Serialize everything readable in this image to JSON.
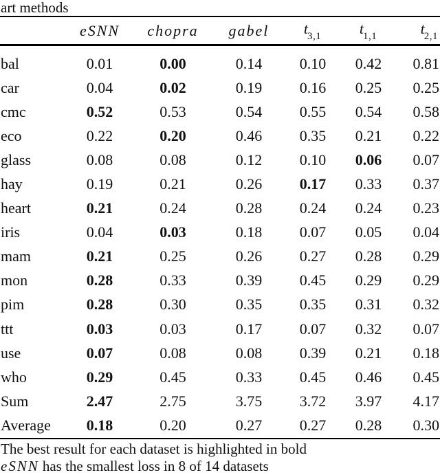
{
  "caption_top": "art methods",
  "table": {
    "headers": [
      {
        "text": "eSNN"
      },
      {
        "text": "chopra"
      },
      {
        "text": "gabel"
      },
      {
        "text": "t",
        "sub": "3,1"
      },
      {
        "text": "t",
        "sub": "1,1"
      },
      {
        "text": "t",
        "sub": "2,1"
      }
    ],
    "rows": [
      {
        "label": "bal",
        "values": [
          "0.01",
          "0.00",
          "0.14",
          "0.10",
          "0.42",
          "0.81"
        ],
        "bold": 1
      },
      {
        "label": "car",
        "values": [
          "0.04",
          "0.02",
          "0.19",
          "0.16",
          "0.25",
          "0.25"
        ],
        "bold": 1
      },
      {
        "label": "cmc",
        "values": [
          "0.52",
          "0.53",
          "0.54",
          "0.55",
          "0.54",
          "0.58"
        ],
        "bold": 0
      },
      {
        "label": "eco",
        "values": [
          "0.22",
          "0.20",
          "0.46",
          "0.35",
          "0.21",
          "0.22"
        ],
        "bold": 1
      },
      {
        "label": "glass",
        "values": [
          "0.08",
          "0.08",
          "0.12",
          "0.10",
          "0.06",
          "0.07"
        ],
        "bold": 4
      },
      {
        "label": "hay",
        "values": [
          "0.19",
          "0.21",
          "0.26",
          "0.17",
          "0.33",
          "0.37"
        ],
        "bold": 3
      },
      {
        "label": "heart",
        "values": [
          "0.21",
          "0.24",
          "0.28",
          "0.24",
          "0.24",
          "0.23"
        ],
        "bold": 0
      },
      {
        "label": "iris",
        "values": [
          "0.04",
          "0.03",
          "0.18",
          "0.07",
          "0.05",
          "0.04"
        ],
        "bold": 1
      },
      {
        "label": "mam",
        "values": [
          "0.21",
          "0.25",
          "0.26",
          "0.27",
          "0.28",
          "0.29"
        ],
        "bold": 0
      },
      {
        "label": "mon",
        "values": [
          "0.28",
          "0.33",
          "0.39",
          "0.45",
          "0.29",
          "0.29"
        ],
        "bold": 0
      },
      {
        "label": "pim",
        "values": [
          "0.28",
          "0.30",
          "0.35",
          "0.35",
          "0.31",
          "0.32"
        ],
        "bold": 0
      },
      {
        "label": "ttt",
        "values": [
          "0.03",
          "0.03",
          "0.17",
          "0.07",
          "0.32",
          "0.07"
        ],
        "bold": 0
      },
      {
        "label": "use",
        "values": [
          "0.07",
          "0.08",
          "0.08",
          "0.39",
          "0.21",
          "0.18"
        ],
        "bold": 0
      },
      {
        "label": "who",
        "values": [
          "0.29",
          "0.45",
          "0.33",
          "0.45",
          "0.46",
          "0.45"
        ],
        "bold": 0
      },
      {
        "label": "Sum",
        "values": [
          "2.47",
          "2.75",
          "3.75",
          "3.72",
          "3.97",
          "4.17"
        ],
        "bold": 0
      },
      {
        "label": "Average",
        "values": [
          "0.18",
          "0.20",
          "0.27",
          "0.27",
          "0.28",
          "0.30"
        ],
        "bold": 0
      }
    ]
  },
  "footnotes": {
    "line1": "The best result for each dataset is highlighted in bold",
    "line2_italic": "eSNN",
    "line2_text": "has the smallest loss in 8 of 14 datasets"
  }
}
